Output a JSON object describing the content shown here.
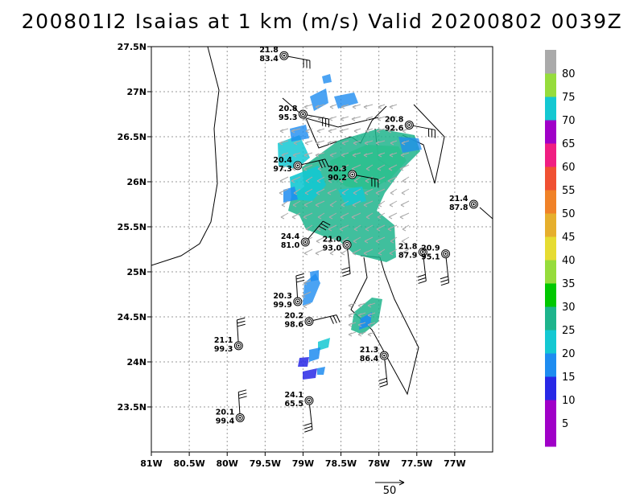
{
  "title": "200801I2 Isaias at 1 km (m/s) Valid 20200802 0039Z",
  "axes": {
    "lon_range": [
      -81.0,
      -76.5
    ],
    "lat_range": [
      23.0,
      27.5
    ],
    "x_ticks": [
      {
        "value": -81.0,
        "label": "81W"
      },
      {
        "value": -80.5,
        "label": "80.5W"
      },
      {
        "value": -80.0,
        "label": "80W"
      },
      {
        "value": -79.5,
        "label": "79.5W"
      },
      {
        "value": -79.0,
        "label": "79W"
      },
      {
        "value": -78.5,
        "label": "78.5W"
      },
      {
        "value": -78.0,
        "label": "78W"
      },
      {
        "value": -77.5,
        "label": "77.5W"
      },
      {
        "value": -77.0,
        "label": "77W"
      }
    ],
    "y_ticks": [
      {
        "value": 27.5,
        "label": "27.5N"
      },
      {
        "value": 27.0,
        "label": "27N"
      },
      {
        "value": 26.5,
        "label": "26.5N"
      },
      {
        "value": 26.0,
        "label": "26N"
      },
      {
        "value": 25.5,
        "label": "25.5N"
      },
      {
        "value": 25.0,
        "label": "25N"
      },
      {
        "value": 24.5,
        "label": "24.5N"
      },
      {
        "value": 24.0,
        "label": "24N"
      },
      {
        "value": 23.5,
        "label": "23.5N"
      }
    ],
    "grid": true
  },
  "colorbar": {
    "segments": [
      {
        "color": "#a000c8"
      },
      {
        "color": "#a000c8"
      },
      {
        "color": "#2828e6"
      },
      {
        "color": "#1e8cf0"
      },
      {
        "color": "#14c8d2"
      },
      {
        "color": "#1eb48c"
      },
      {
        "color": "#00c800"
      },
      {
        "color": "#96dc3c"
      },
      {
        "color": "#e6dc32"
      },
      {
        "color": "#e6af2d"
      },
      {
        "color": "#f08228"
      },
      {
        "color": "#f05032"
      },
      {
        "color": "#f01e82"
      },
      {
        "color": "#a000c8"
      },
      {
        "color": "#14c8d2"
      },
      {
        "color": "#96dc3c"
      },
      {
        "color": "#aaaaaa"
      }
    ],
    "labels": [
      "5",
      "10",
      "15",
      "20",
      "25",
      "30",
      "35",
      "40",
      "45",
      "50",
      "55",
      "60",
      "65",
      "70",
      "75",
      "80"
    ]
  },
  "stations": [
    {
      "lon": -79.25,
      "lat": 27.4,
      "temp": "21.8",
      "rh": "83.4",
      "barb": "ssw"
    },
    {
      "lon": -79.0,
      "lat": 26.75,
      "temp": "20.8",
      "rh": "95.3",
      "barb": "ssw"
    },
    {
      "lon": -77.6,
      "lat": 26.63,
      "temp": "20.8",
      "rh": "92.6",
      "barb": "ssw"
    },
    {
      "lon": -79.07,
      "lat": 26.18,
      "temp": "20.4",
      "rh": "97.3",
      "barb": "w"
    },
    {
      "lon": -78.35,
      "lat": 26.08,
      "temp": "20.3",
      "rh": "90.2",
      "barb": "ssw"
    },
    {
      "lon": -76.75,
      "lat": 25.75,
      "temp": "21.4",
      "rh": "87.8",
      "barb": "none"
    },
    {
      "lon": -78.97,
      "lat": 25.33,
      "temp": "24.4",
      "rh": "81.0",
      "barb": "ne"
    },
    {
      "lon": -78.42,
      "lat": 25.3,
      "temp": "21.0",
      "rh": "93.0",
      "barb": "s"
    },
    {
      "lon": -77.42,
      "lat": 25.22,
      "temp": "21.8",
      "rh": "87.9",
      "barb": "s"
    },
    {
      "lon": -77.12,
      "lat": 25.2,
      "temp": "20.9",
      "rh": "95.1",
      "barb": "s"
    },
    {
      "lon": -79.07,
      "lat": 24.67,
      "temp": "20.3",
      "rh": "99.9",
      "barb": "n"
    },
    {
      "lon": -78.92,
      "lat": 24.45,
      "temp": "20.2",
      "rh": "98.6",
      "barb": "w"
    },
    {
      "lon": -79.85,
      "lat": 24.18,
      "temp": "21.1",
      "rh": "99.3",
      "barb": "n"
    },
    {
      "lon": -77.93,
      "lat": 24.07,
      "temp": "21.3",
      "rh": "86.4",
      "barb": "s"
    },
    {
      "lon": -78.92,
      "lat": 23.57,
      "temp": "24.1",
      "rh": "65.5",
      "barb": "s"
    },
    {
      "lon": -79.83,
      "lat": 23.38,
      "temp": "20.1",
      "rh": "99.4",
      "barb": "n"
    }
  ],
  "scale_vector": {
    "label": "50"
  }
}
